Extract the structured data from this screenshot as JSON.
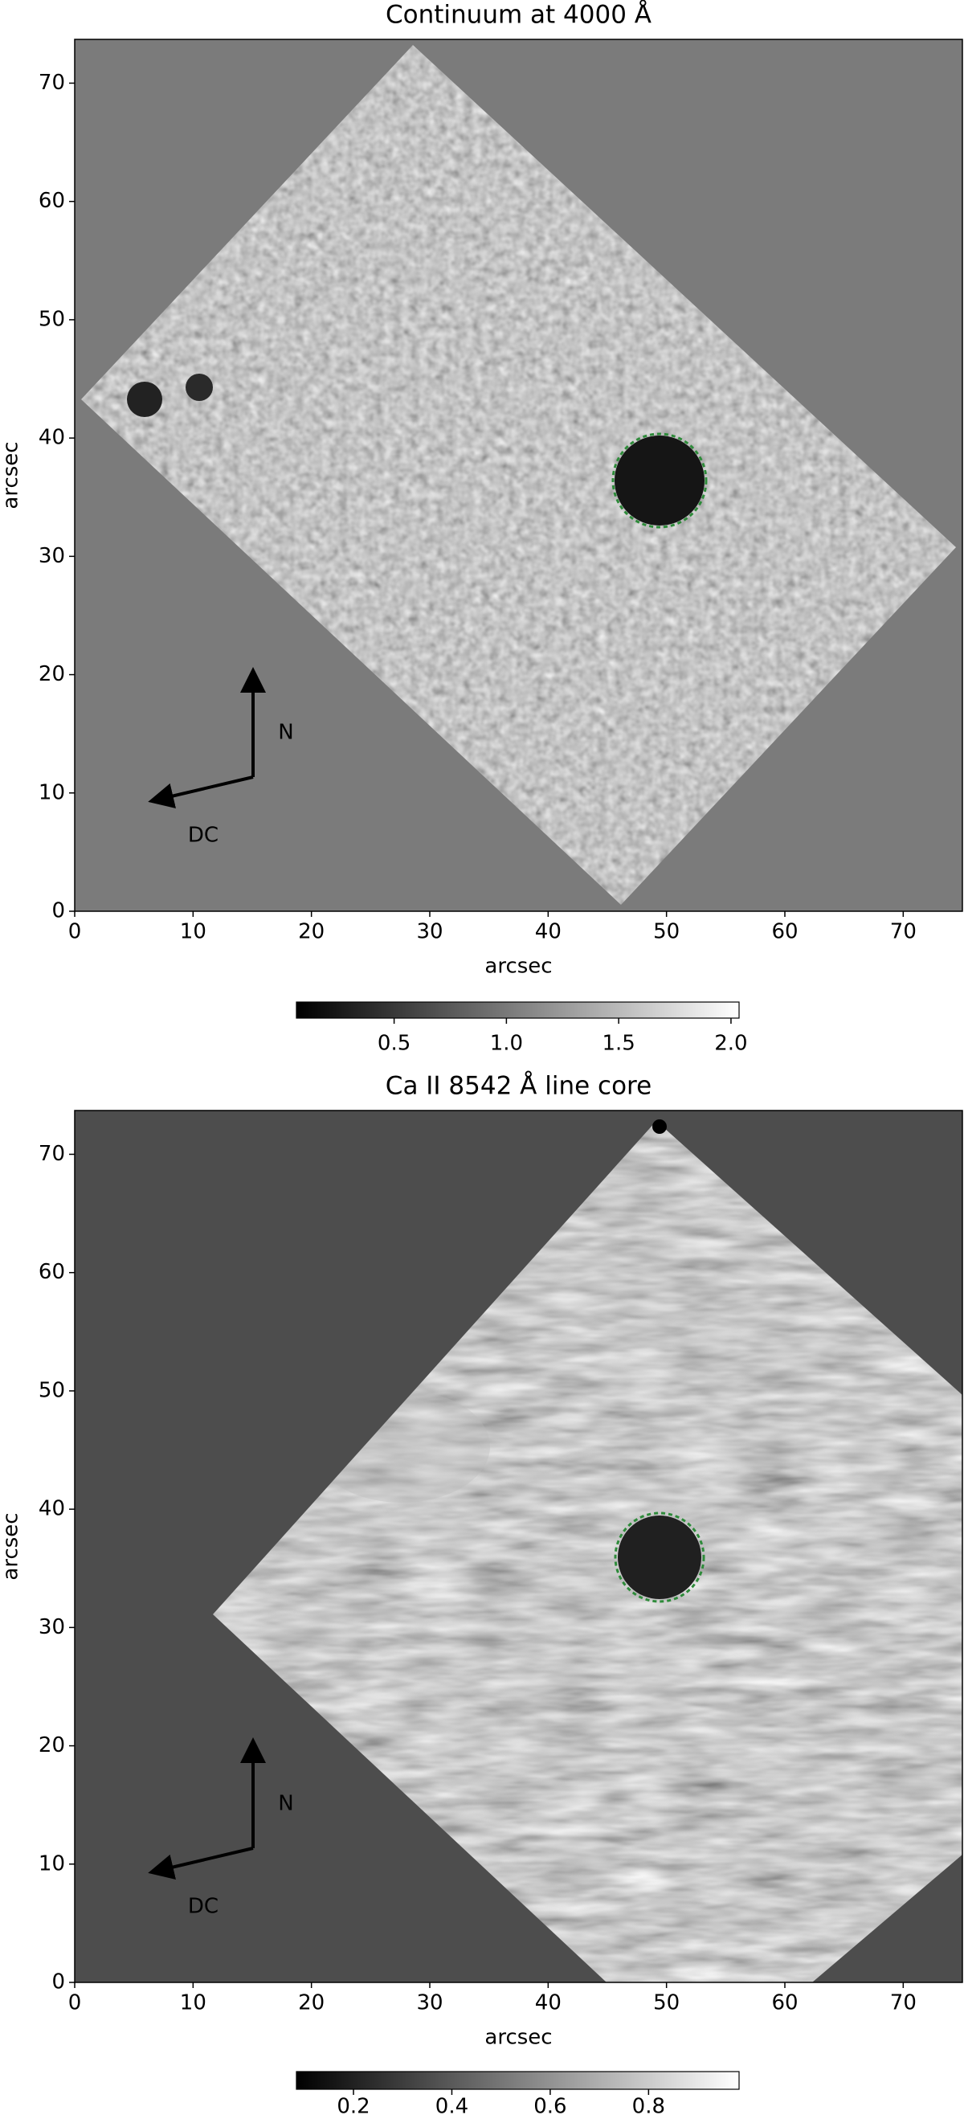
{
  "chart_data": [
    {
      "type": "image",
      "title": "Continuum at 4000 Å",
      "xlabel": "arcsec",
      "ylabel": "arcsec",
      "xlim": [
        0,
        75
      ],
      "ylim": [
        0,
        73.7
      ],
      "xticks": [
        0,
        10,
        20,
        30,
        40,
        50,
        60,
        70
      ],
      "yticks": [
        0,
        10,
        20,
        30,
        40,
        50,
        60,
        70
      ],
      "colormap": "gray",
      "colorbar": {
        "clim": [
          0.065,
          2.036
        ],
        "ticks": [
          0.5,
          {
            "value": 1,
            "label": "1.0"
          },
          1.5,
          {
            "value": 2,
            "label": "2.0"
          }
        ]
      },
      "annotations": [
        "N",
        "DC"
      ]
    },
    {
      "type": "image",
      "title": "Ca II 8542 Å line core",
      "xlabel": "arcsec",
      "ylabel": "arcsec",
      "xlim": [
        0,
        75
      ],
      "ylim": [
        0,
        73.7
      ],
      "xticks": [
        0,
        10,
        20,
        30,
        40,
        50,
        60,
        70
      ],
      "yticks": [
        0,
        10,
        20,
        30,
        40,
        50,
        60,
        70
      ],
      "colormap": "gray",
      "colorbar": {
        "clim": [
          0.084,
          0.984
        ],
        "ticks": [
          0.2,
          0.4,
          0.6,
          0.8
        ]
      },
      "annotations": [
        "N",
        "DC"
      ]
    }
  ]
}
